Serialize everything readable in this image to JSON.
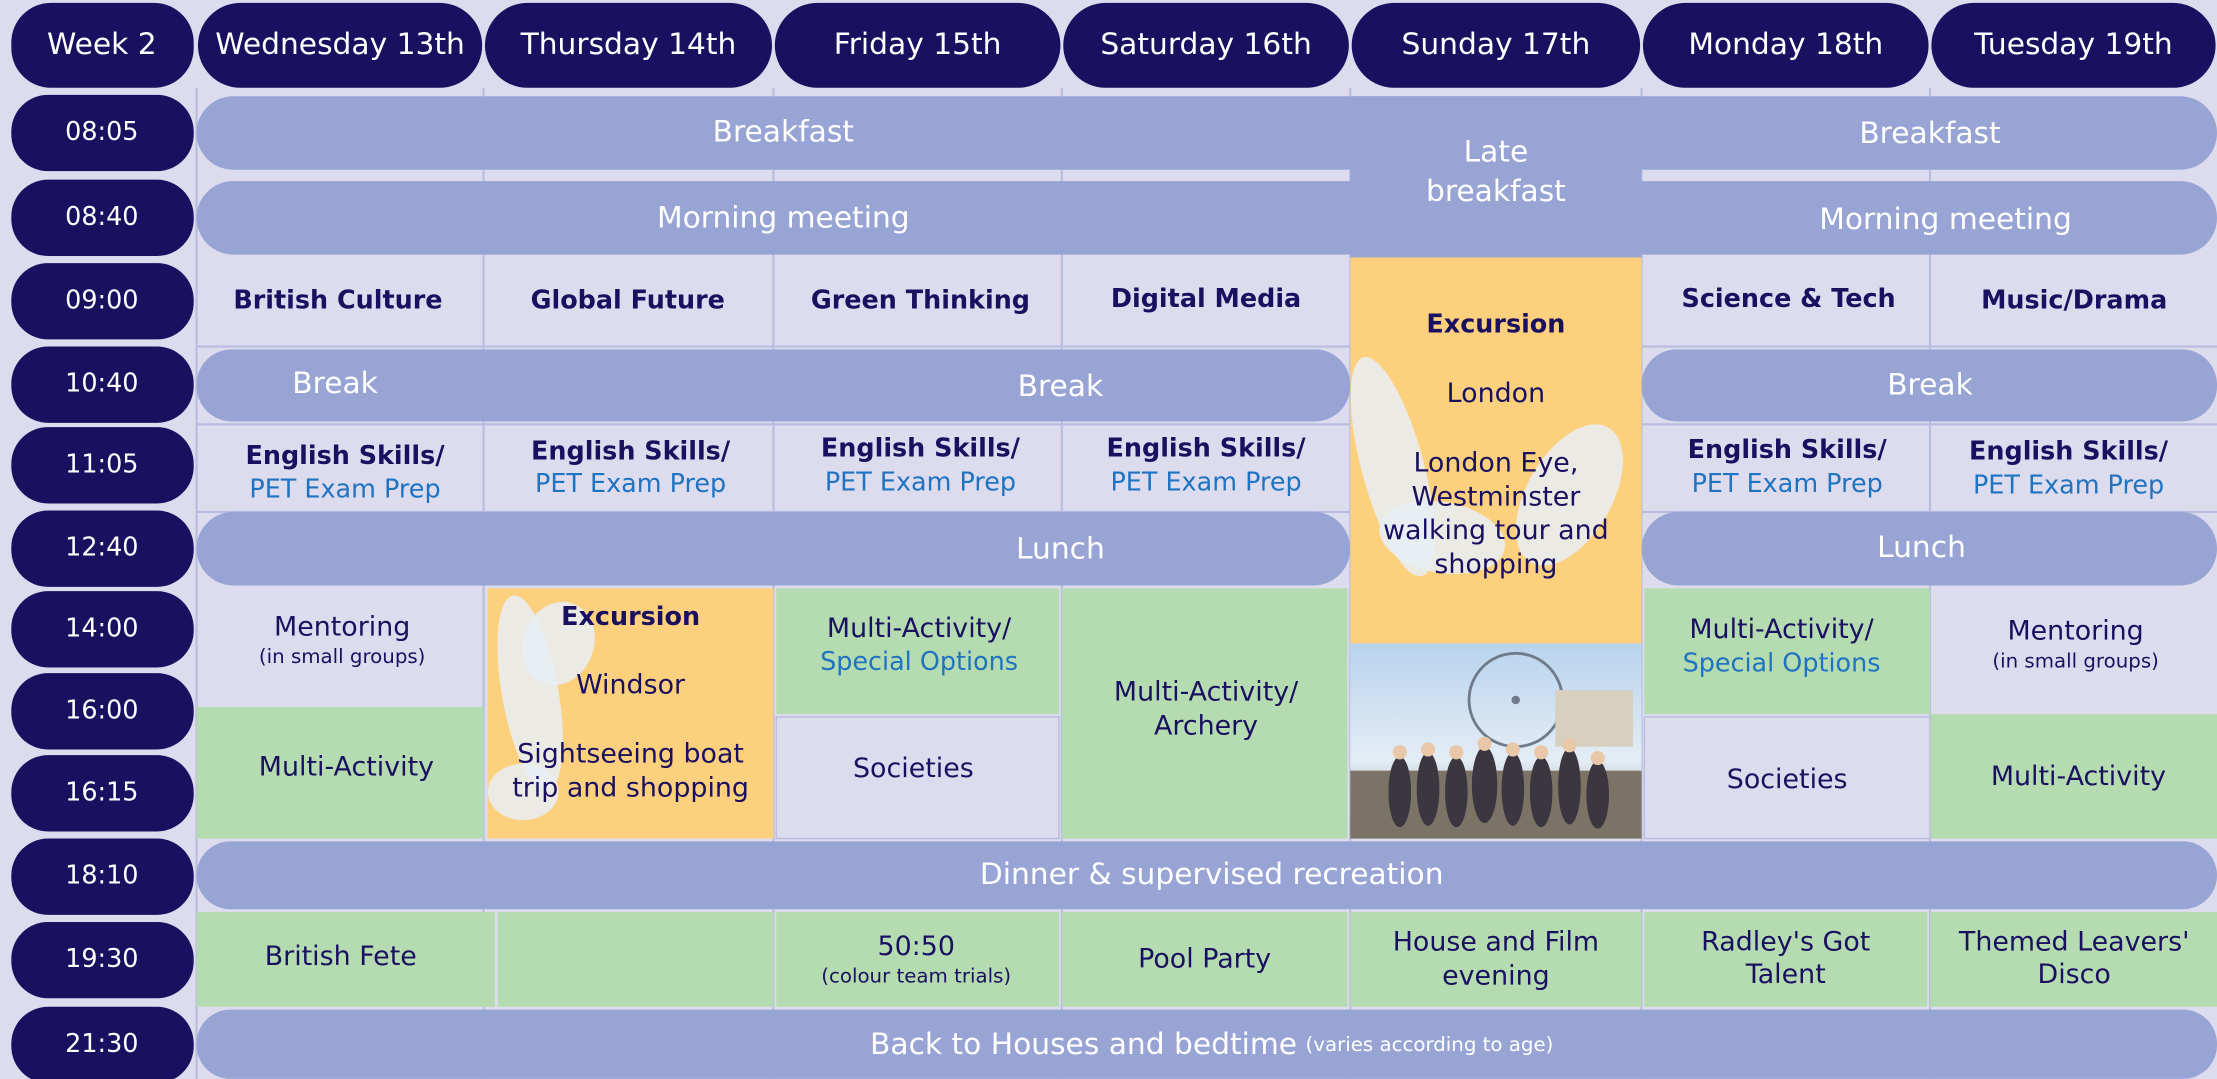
{
  "header": {
    "week": "Week 2",
    "days": [
      "Wednesday 13th",
      "Thursday 14th",
      "Friday 15th",
      "Saturday 16th",
      "Sunday 17th",
      "Monday 18th",
      "Tuesday 19th"
    ]
  },
  "times": [
    "08:05",
    "08:40",
    "09:00",
    "10:40",
    "11:05",
    "12:40",
    "14:00",
    "16:00",
    "16:15",
    "18:10",
    "19:30",
    "21:30"
  ],
  "cells": [
    {
      "lines": [
        "Breakfast"
      ]
    },
    {
      "lines": [
        "Late",
        "breakfast"
      ]
    },
    {
      "lines": [
        "Breakfast"
      ]
    },
    {
      "lines": [
        "Morning meeting"
      ]
    },
    {
      "lines": [
        "Morning meeting"
      ]
    },
    {
      "lines": [
        "British Culture"
      ]
    },
    {
      "lines": [
        "Global Future"
      ]
    },
    {
      "lines": [
        "Green Thinking"
      ]
    },
    {
      "lines": [
        "Digital Media"
      ]
    },
    {
      "lines": [
        "Science & Tech"
      ]
    },
    {
      "lines": [
        "Music/Drama"
      ]
    },
    {
      "lines": [
        "Excursion",
        "London",
        "London Eye,",
        "Westminster",
        "walking tour and",
        "shopping"
      ]
    },
    {
      "lines": [
        "Break"
      ]
    },
    {
      "lines": [
        "Break"
      ]
    },
    {
      "lines": [
        "Break"
      ]
    },
    {
      "lines": [
        "English Skills/",
        "PET Exam Prep"
      ]
    },
    {
      "lines": [
        "English Skills/",
        "PET Exam Prep"
      ]
    },
    {
      "lines": [
        "English Skills/",
        "PET Exam Prep"
      ]
    },
    {
      "lines": [
        "English Skills/",
        "PET Exam Prep"
      ]
    },
    {
      "lines": [
        "English Skills/",
        "PET Exam Prep"
      ]
    },
    {
      "lines": [
        "English Skills/",
        "PET Exam Prep"
      ]
    },
    {
      "lines": [
        "Lunch"
      ]
    },
    {
      "lines": [
        "Lunch"
      ]
    },
    {
      "lines": [
        "Mentoring",
        "(in small groups)"
      ]
    },
    {
      "lines": [
        "Multi-Activity"
      ]
    },
    {
      "lines": [
        "Excursion",
        "Windsor",
        "Sightseeing boat",
        "trip and shopping"
      ]
    },
    {
      "lines": [
        "Multi-Activity/",
        "Special Options"
      ]
    },
    {
      "lines": [
        "Societies"
      ]
    },
    {
      "lines": [
        "Multi-Activity/",
        "Archery"
      ]
    },
    {
      "lines": [
        "Multi-Activity/",
        "Special Options"
      ]
    },
    {
      "lines": [
        "Societies"
      ]
    },
    {
      "lines": [
        "Mentoring",
        "(in small groups)"
      ]
    },
    {
      "lines": [
        "Multi-Activity"
      ]
    },
    {
      "lines": [
        "Dinner & supervised recreation"
      ]
    },
    {
      "lines": [
        "British Fete"
      ]
    },
    {
      "lines": [
        "50:50",
        "(colour team trials)"
      ]
    },
    {
      "lines": [
        "Pool Party"
      ]
    },
    {
      "lines": [
        "House and Film",
        "evening"
      ]
    },
    {
      "lines": [
        "Radley's Got",
        "Talent"
      ]
    },
    {
      "lines": [
        "Themed Leavers'",
        "Disco"
      ]
    },
    {
      "lines": [
        "Back to Houses and bedtime",
        "(varies according to age)"
      ]
    }
  ]
}
